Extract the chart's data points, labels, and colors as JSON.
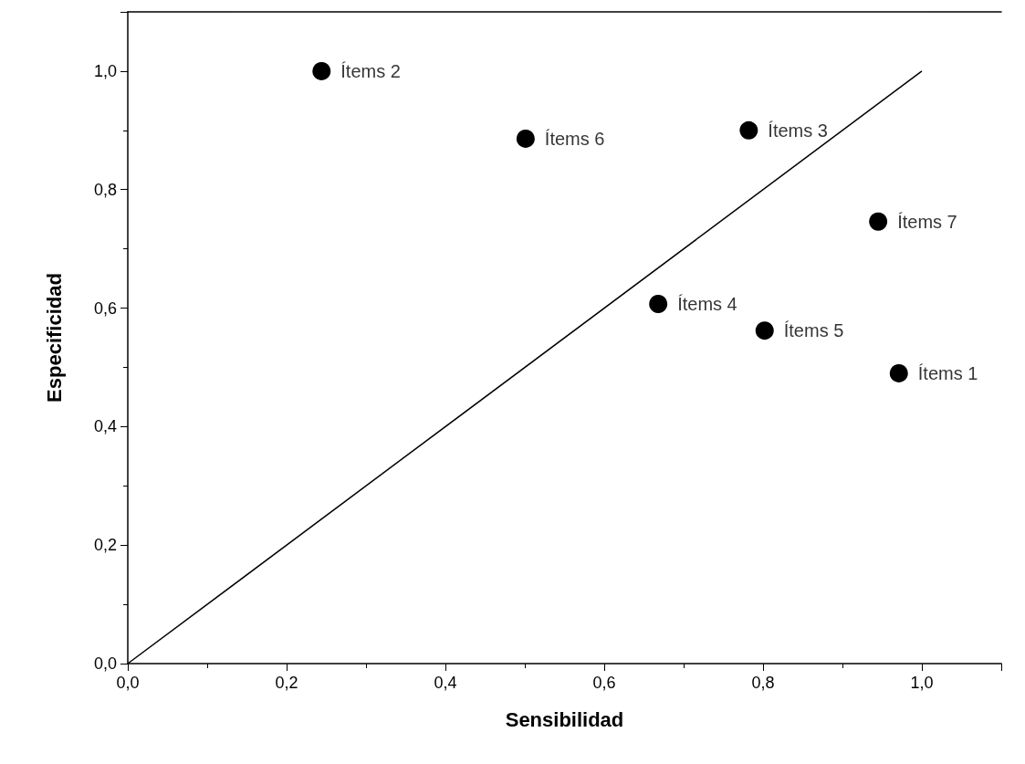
{
  "chart_data": {
    "type": "scatter",
    "xlabel": "Sensibilidad",
    "ylabel": "Especificidad",
    "xlim": [
      0,
      1.1
    ],
    "ylim": [
      0,
      1.1
    ],
    "xticks": [
      {
        "value": 0,
        "label": "0,0"
      },
      {
        "value": 0.2,
        "label": "0,2"
      },
      {
        "value": 0.4,
        "label": "0,4"
      },
      {
        "value": 0.6,
        "label": "0,6"
      },
      {
        "value": 0.8,
        "label": "0,8"
      },
      {
        "value": 1,
        "label": "1,0"
      }
    ],
    "yticks": [
      {
        "value": 0,
        "label": "0,0"
      },
      {
        "value": 0.2,
        "label": "0,2"
      },
      {
        "value": 0.4,
        "label": "0,4"
      },
      {
        "value": 0.6,
        "label": "0,6"
      },
      {
        "value": 0.8,
        "label": "0,8"
      },
      {
        "value": 1,
        "label": "1,0"
      }
    ],
    "grid": false,
    "series": [
      {
        "type": "line",
        "color": "#000000",
        "x": [
          0,
          1
        ],
        "values": [
          0,
          1
        ]
      },
      {
        "marker": "circle",
        "color": "#000000",
        "x": [
          0.971,
          0.244,
          0.782,
          0.668,
          0.802,
          0.501,
          0.945
        ],
        "values": [
          0.49,
          1.0,
          0.9,
          0.607,
          0.562,
          0.886,
          0.746
        ]
      }
    ],
    "annotations": [
      {
        "text": "Ítems 1",
        "x": 0.971,
        "y": 0.49
      },
      {
        "text": "Ítems 2",
        "x": 0.244,
        "y": 1.0
      },
      {
        "text": "Ítems 3",
        "x": 0.782,
        "y": 0.9
      },
      {
        "text": "Ítems 4",
        "x": 0.668,
        "y": 0.607
      },
      {
        "text": "Ítems 5",
        "x": 0.802,
        "y": 0.562
      },
      {
        "text": "Ítems 6",
        "x": 0.501,
        "y": 0.886
      },
      {
        "text": "Ítems 7",
        "x": 0.945,
        "y": 0.746
      }
    ]
  }
}
